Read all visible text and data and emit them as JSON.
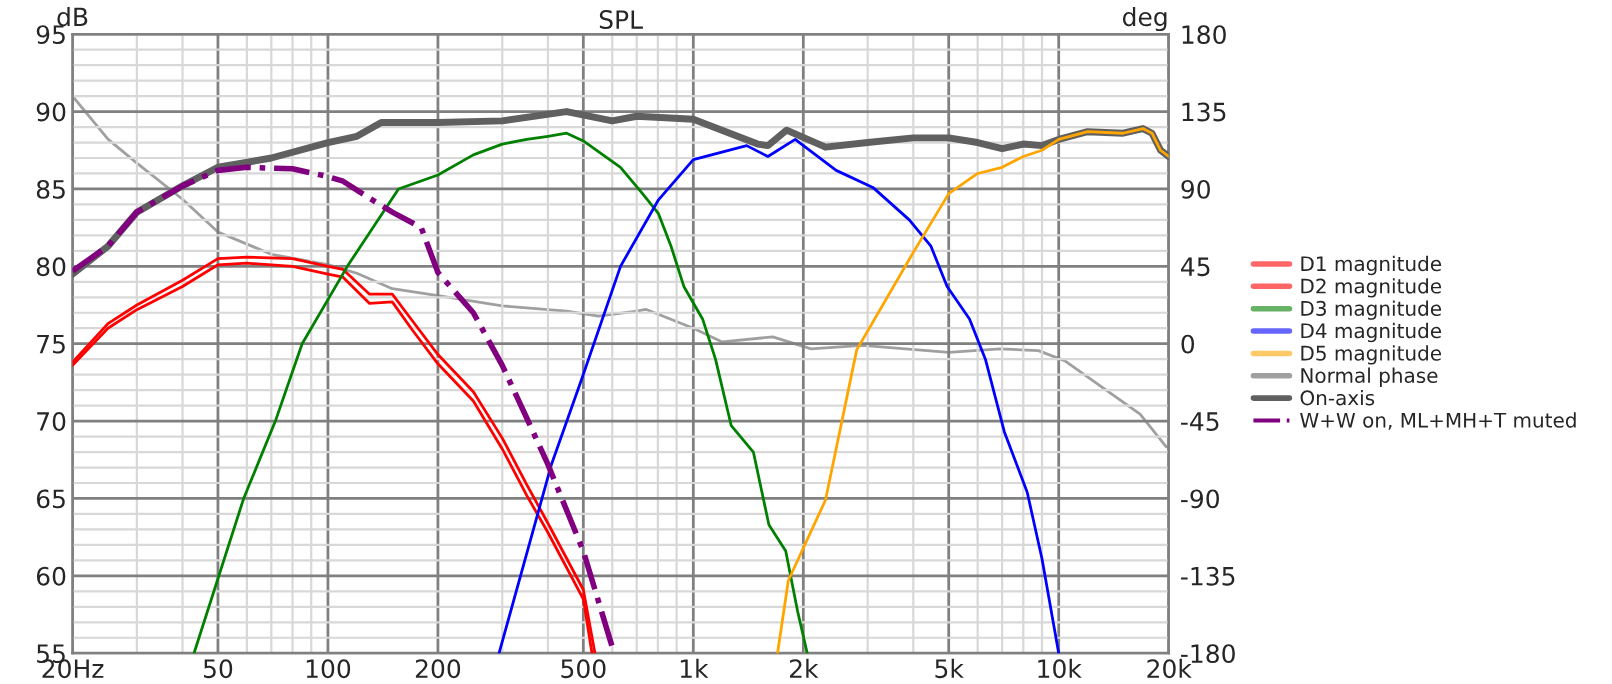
{
  "chart_data": {
    "type": "line",
    "title": "SPL",
    "ylabel": "dB",
    "y2label": "deg",
    "log": "x",
    "xlim": [
      20,
      20000
    ],
    "xticks": [
      {
        "value": 20,
        "label": "20Hz"
      },
      50,
      100,
      200,
      500,
      {
        "value": 1000,
        "label": "1k"
      },
      {
        "value": 2000,
        "label": "2k"
      },
      {
        "value": 5000,
        "label": "5k"
      },
      {
        "value": 10000,
        "label": "10k"
      },
      {
        "value": 20000,
        "label": "20k"
      }
    ],
    "ylim": [
      55,
      95
    ],
    "yticks": [
      55,
      60,
      65,
      70,
      75,
      80,
      85,
      90,
      95
    ],
    "y2lim": [
      -180,
      180
    ],
    "y2ticks": [
      -180,
      -135,
      -90,
      -45,
      0,
      45,
      90,
      135,
      180
    ],
    "grid": true,
    "legend": "right",
    "marker": "none",
    "series": [
      {
        "name": "D1 magnitude",
        "color": "#ff0000",
        "x": [
          20,
          25,
          30,
          40,
          50,
          60,
          80,
          100,
          110,
          130,
          150,
          170,
          200,
          250,
          300,
          350,
          400,
          500,
          538
        ],
        "values": [
          73.8,
          76.3,
          77.5,
          79.1,
          80.5,
          80.6,
          80.5,
          80.0,
          79.8,
          78.2,
          78.2,
          76.5,
          74.3,
          71.9,
          68.9,
          65.9,
          63.4,
          59.1,
          55
        ]
      },
      {
        "name": "D2 magnitude",
        "color": "#ff0000",
        "x": [
          20,
          25,
          30,
          40,
          50,
          60,
          80,
          100,
          110,
          130,
          150,
          170,
          200,
          250,
          300,
          350,
          400,
          500,
          528
        ],
        "values": [
          73.6,
          76.0,
          77.2,
          78.7,
          80.1,
          80.2,
          80.0,
          79.5,
          79.3,
          77.6,
          77.7,
          75.9,
          73.7,
          71.3,
          68.2,
          65.2,
          62.8,
          58.5,
          55
        ]
      },
      {
        "name": "D3 magnitude",
        "color": "#008000",
        "x": [
          43,
          58.8,
          71.8,
          85,
          113,
          156,
          200,
          250,
          300,
          350,
          400,
          450,
          500,
          632,
          726,
          803,
          869,
          942,
          1060,
          1150,
          1270,
          1460,
          1610,
          1790,
          1930,
          2050
        ],
        "values": [
          55,
          65,
          70,
          75,
          80,
          85,
          85.9,
          87.2,
          87.9,
          88.2,
          88.4,
          88.6,
          88.1,
          86.4,
          84.7,
          83.4,
          81.3,
          78.7,
          76.6,
          74.0,
          69.7,
          68.0,
          63.3,
          61.6,
          57.7,
          55
        ]
      },
      {
        "name": "D4 magnitude",
        "color": "#0000ff",
        "x": [
          294,
          409,
          498,
          632,
          803,
          1000,
          1400,
          1600,
          1900,
          2460,
          3100,
          3900,
          4470,
          4950,
          5700,
          6300,
          7100,
          8200,
          9000,
          10000
        ],
        "values": [
          55,
          67.2,
          72.9,
          80.0,
          84.3,
          86.9,
          87.8,
          87.1,
          88.2,
          86.2,
          85.1,
          83.0,
          81.3,
          78.7,
          76.6,
          74.0,
          69.3,
          65.4,
          61.1,
          55
        ]
      },
      {
        "name": "D5 magnitude",
        "color": "#ffa500",
        "x": [
          1700,
          1820,
          2300,
          2800,
          4000,
          5000,
          6000,
          7000,
          8000,
          9000,
          10000,
          12000,
          15000,
          17000,
          18000,
          19000,
          20000
        ],
        "values": [
          55,
          59.7,
          64.9,
          74.6,
          80.9,
          84.7,
          86.0,
          86.4,
          87.1,
          87.5,
          88.2,
          88.7,
          88.6,
          88.9,
          88.6,
          87.5,
          87.1
        ]
      },
      {
        "name": "Normal phase",
        "color": "#a0a0a0",
        "axis": "y2",
        "x": [
          20,
          25,
          30,
          40,
          50,
          70,
          100,
          120,
          150,
          200,
          300,
          450,
          550,
          700,
          741,
          1000,
          1200,
          1650,
          2100,
          2900,
          5000,
          6900,
          8800,
          10400,
          13700,
          16700,
          19700
        ],
        "values": [
          144,
          119,
          105,
          84,
          65,
          52,
          46,
          41,
          32,
          28,
          22,
          19,
          16,
          19,
          20,
          9,
          1,
          4,
          -3,
          -1,
          -5,
          -3,
          -4,
          -10,
          -28,
          -41,
          -60
        ]
      },
      {
        "name": "On-axis",
        "color": "#606060",
        "x": [
          20,
          25,
          30,
          40,
          50,
          70,
          100,
          120,
          140,
          200,
          300,
          450,
          600,
          700,
          1000,
          1500,
          1600,
          1800,
          2300,
          3000,
          4000,
          5000,
          6000,
          7000,
          8000,
          9000,
          10000,
          12000,
          15000,
          17000,
          18000,
          19000,
          20000
        ],
        "values": [
          79.5,
          81.3,
          83.5,
          85.2,
          86.4,
          87.0,
          88.0,
          88.4,
          89.3,
          89.3,
          89.4,
          90.0,
          89.4,
          89.7,
          89.5,
          87.9,
          87.8,
          88.8,
          87.7,
          88.0,
          88.3,
          88.3,
          88.0,
          87.6,
          87.9,
          87.8,
          88.2,
          88.7,
          88.6,
          88.9,
          88.6,
          87.5,
          87.1
        ]
      },
      {
        "name": "W+W on, ML+MH+T muted",
        "color": "#800080",
        "line_style": "dashdot",
        "x": [
          20,
          25,
          30,
          40,
          50,
          60,
          80,
          100,
          110,
          130,
          150,
          180,
          200,
          250,
          300,
          350,
          400,
          500,
          607
        ],
        "values": [
          79.7,
          81.3,
          83.5,
          85.2,
          86.2,
          86.4,
          86.3,
          85.8,
          85.5,
          84.4,
          83.5,
          82.5,
          79.6,
          77.0,
          73.6,
          70.2,
          67.2,
          61.6,
          55
        ]
      }
    ]
  }
}
